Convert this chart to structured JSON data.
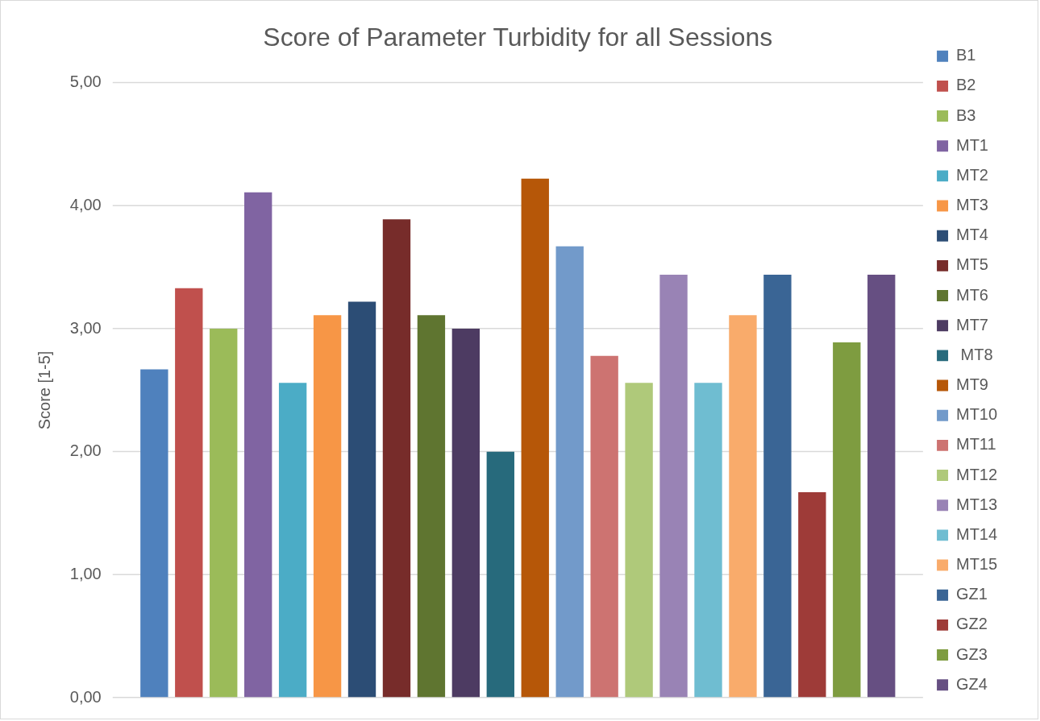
{
  "chart_data": {
    "type": "bar",
    "title": "Score of Parameter Turbidity for all Sessions",
    "ylabel": "Score [1-5]",
    "categories": [
      null
    ],
    "series": [
      {
        "name": "B1",
        "color": "#4f81bd",
        "values": [
          2.67
        ]
      },
      {
        "name": "B2",
        "color": "#c0504d",
        "values": [
          3.33
        ]
      },
      {
        "name": "B3",
        "color": "#9bbb59",
        "values": [
          3.0
        ]
      },
      {
        "name": "MT1",
        "color": "#8064a2",
        "values": [
          4.11
        ]
      },
      {
        "name": "MT2",
        "color": "#4bacc6",
        "values": [
          2.56
        ]
      },
      {
        "name": "MT3",
        "color": "#f79646",
        "values": [
          3.11
        ]
      },
      {
        "name": "MT4",
        "color": "#2c4d75",
        "values": [
          3.22
        ]
      },
      {
        "name": "MT5",
        "color": "#772c2a",
        "values": [
          3.89
        ]
      },
      {
        "name": "MT6",
        "color": "#5f7530",
        "values": [
          3.11
        ]
      },
      {
        "name": "MT7",
        "color": "#4d3b62",
        "values": [
          3.0
        ]
      },
      {
        "name": " MT8",
        "color": "#276a7c",
        "values": [
          2.0
        ]
      },
      {
        "name": "MT9",
        "color": "#b65708",
        "values": [
          4.22
        ]
      },
      {
        "name": "MT10",
        "color": "#729aca",
        "values": [
          3.67
        ]
      },
      {
        "name": "MT11",
        "color": "#cd7371",
        "values": [
          2.78
        ]
      },
      {
        "name": "MT12",
        "color": "#afc97a",
        "values": [
          2.56
        ]
      },
      {
        "name": "MT13",
        "color": "#9983b5",
        "values": [
          3.44
        ]
      },
      {
        "name": "MT14",
        "color": "#6fbdd1",
        "values": [
          2.56
        ]
      },
      {
        "name": "MT15",
        "color": "#f9ab6b",
        "values": [
          3.11
        ]
      },
      {
        "name": "GZ1",
        "color": "#3a6595",
        "values": [
          3.44
        ]
      },
      {
        "name": "GZ2",
        "color": "#9e3b38",
        "values": [
          1.67
        ]
      },
      {
        "name": "GZ3",
        "color": "#7e9c40",
        "values": [
          2.89
        ]
      },
      {
        "name": "GZ4",
        "color": "#664f82",
        "values": [
          3.44
        ]
      }
    ],
    "ylim": [
      0,
      5
    ],
    "yticks": [
      {
        "value": 0,
        "label": "0,00"
      },
      {
        "value": 1,
        "label": "1,00"
      },
      {
        "value": 2,
        "label": "2,00"
      },
      {
        "value": 3,
        "label": "3,00"
      },
      {
        "value": 4,
        "label": "4,00"
      },
      {
        "value": 5,
        "label": "5,00"
      }
    ],
    "grid": "y",
    "legend": "right"
  }
}
